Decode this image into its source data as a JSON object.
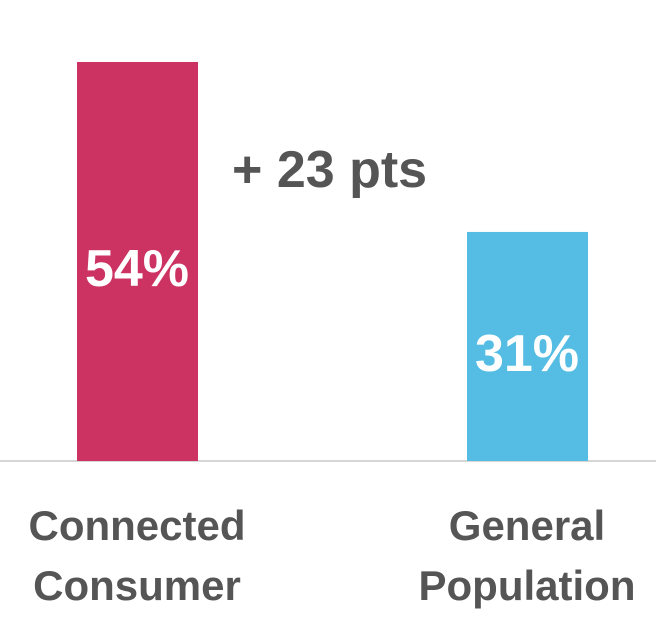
{
  "chart_data": {
    "type": "bar",
    "categories": [
      "Connected Consumer",
      "General Population"
    ],
    "category_lines": [
      [
        "Connected",
        "Consumer"
      ],
      [
        "General",
        "Population"
      ]
    ],
    "values": [
      54,
      31
    ],
    "value_labels": [
      "54%",
      "31%"
    ],
    "colors": [
      "#cc3363",
      "#55bde3"
    ],
    "annotation": "+ 23 pts",
    "ylim": [
      0,
      54
    ],
    "grid": false,
    "legend": "none",
    "title": "",
    "xlabel": "",
    "ylabel": ""
  }
}
